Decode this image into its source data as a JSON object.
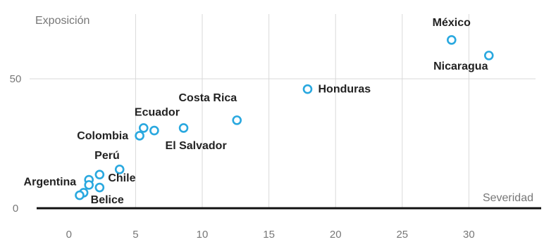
{
  "chart_data": {
    "type": "scatter",
    "xlabel": "Severidad",
    "ylabel": "Exposición",
    "xlim": [
      -2,
      35
    ],
    "ylim": [
      0,
      75
    ],
    "x_ticks": [
      "0",
      "5",
      "10",
      "15",
      "20",
      "25",
      "30"
    ],
    "y_ticks": [
      "0",
      "50"
    ],
    "grid": true,
    "marker_color": "#29a8df",
    "points": [
      {
        "label": "México",
        "x": 28.7,
        "y": 65
      },
      {
        "label": "Nicaragua",
        "x": 31.5,
        "y": 59
      },
      {
        "label": "Honduras",
        "x": 17.9,
        "y": 46
      },
      {
        "label": "Costa Rica",
        "x": 12.6,
        "y": 34
      },
      {
        "label": "Ecuador",
        "x": 6.4,
        "y": 30
      },
      {
        "label": "El Salvador",
        "x": 8.6,
        "y": 31
      },
      {
        "label": "Colombia",
        "x": 5.3,
        "y": 28
      },
      {
        "label": "",
        "x": 5.6,
        "y": 31
      },
      {
        "label": "Perú",
        "x": 3.8,
        "y": 15
      },
      {
        "label": "Chile",
        "x": 2.3,
        "y": 13
      },
      {
        "label": "Argentina",
        "x": 1.5,
        "y": 11
      },
      {
        "label": "",
        "x": 1.5,
        "y": 9
      },
      {
        "label": "",
        "x": 2.3,
        "y": 8
      },
      {
        "label": "Belice",
        "x": 1.1,
        "y": 6
      },
      {
        "label": "",
        "x": 0.8,
        "y": 5
      }
    ]
  }
}
